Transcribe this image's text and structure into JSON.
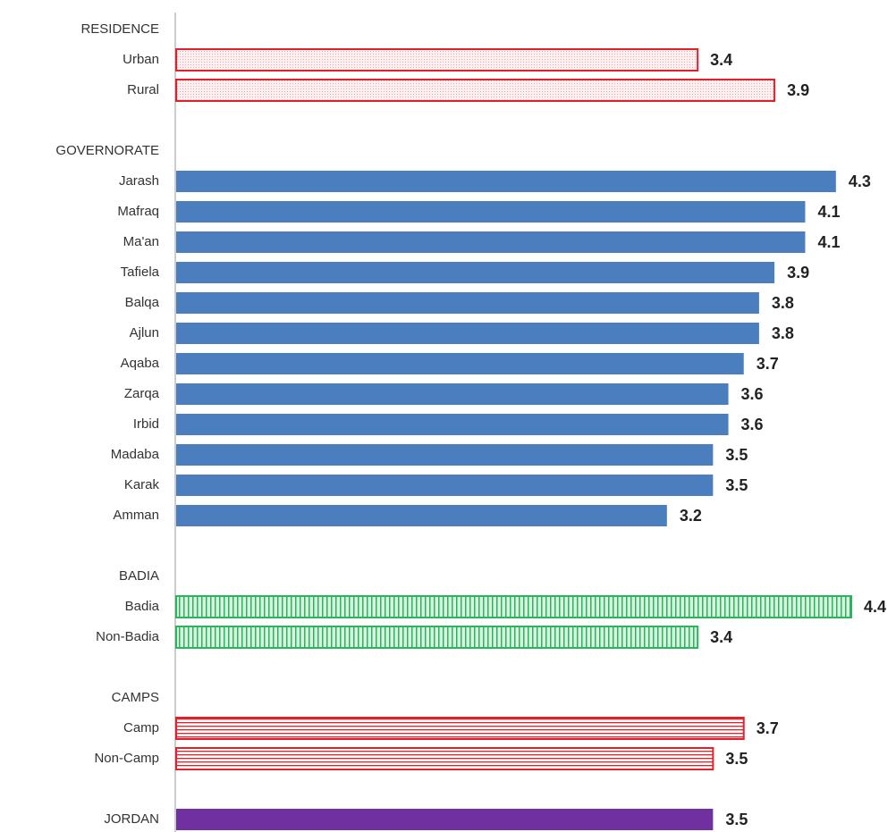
{
  "chart_data": {
    "type": "bar",
    "orientation": "horizontal",
    "xlim": [
      0,
      4.4
    ],
    "groups": [
      {
        "name": "RESIDENCE",
        "color": "#e0202a",
        "pattern": "dots",
        "categories": [
          "Urban",
          "Rural"
        ],
        "values": [
          3.4,
          3.9
        ]
      },
      {
        "name": "GOVERNORATE",
        "color": "#4a7ebf",
        "pattern": "solid",
        "categories": [
          "Jarash",
          "Mafraq",
          "Ma'an",
          "Tafiela",
          "Balqa",
          "Ajlun",
          "Aqaba",
          "Zarqa",
          "Irbid",
          "Madaba",
          "Karak",
          "Amman"
        ],
        "values": [
          4.3,
          4.1,
          4.1,
          3.9,
          3.8,
          3.8,
          3.7,
          3.6,
          3.6,
          3.5,
          3.5,
          3.2
        ]
      },
      {
        "name": "BADIA",
        "color": "#2db35d",
        "pattern": "vertical-stripes",
        "categories": [
          "Badia",
          "Non-Badia"
        ],
        "values": [
          4.4,
          3.4
        ]
      },
      {
        "name": "CAMPS",
        "color": "#e0202a",
        "pattern": "horizontal-stripes",
        "categories": [
          "Camp",
          "Non-Camp"
        ],
        "values": [
          3.7,
          3.5
        ]
      }
    ],
    "total": {
      "name": "JORDAN",
      "color": "#7030a0",
      "pattern": "solid",
      "value": 3.5
    }
  }
}
